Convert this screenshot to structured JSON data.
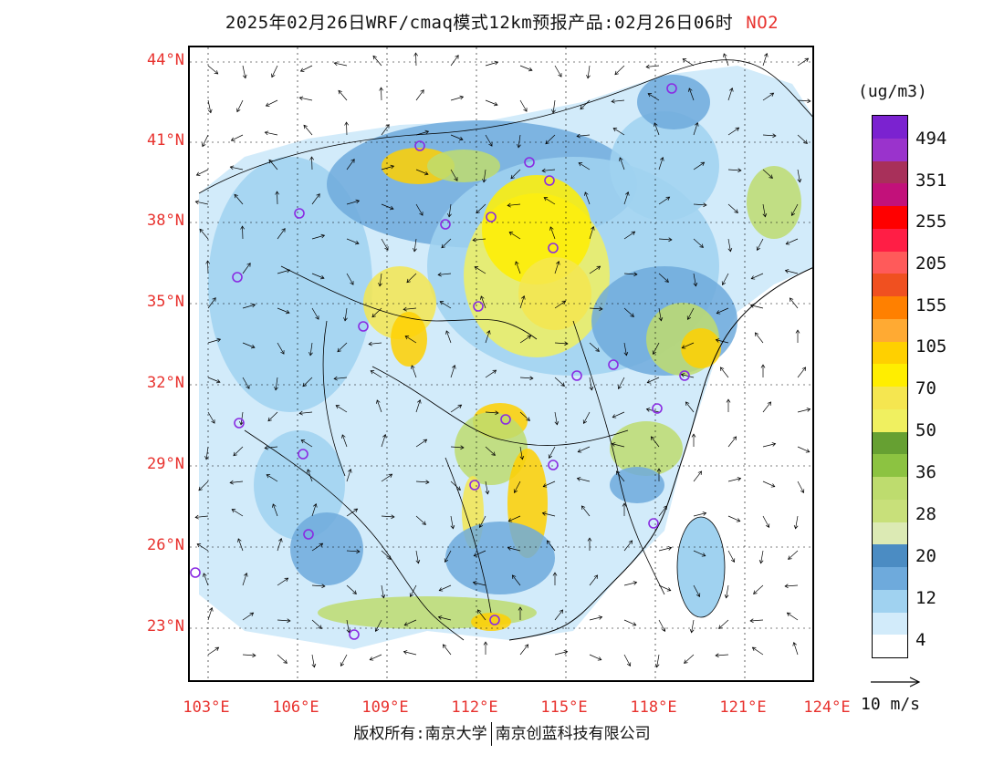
{
  "title": {
    "text": "2025年02月26日WRF/cmaq模式12km预报产品:02月26日06时",
    "species": "NO2"
  },
  "latitude_labels": [
    "44°N",
    "41°N",
    "38°N",
    "35°N",
    "32°N",
    "29°N",
    "26°N",
    "23°N"
  ],
  "longitude_labels": [
    "103°E",
    "106°E",
    "109°E",
    "112°E",
    "115°E",
    "118°E",
    "121°E",
    "124°E"
  ],
  "colorbar": {
    "units": "(ug/m3)",
    "labels": [
      "494",
      "351",
      "255",
      "205",
      "155",
      "105",
      "70",
      "50",
      "36",
      "28",
      "20",
      "12",
      "4"
    ],
    "colors": [
      "#7b22d0",
      "#9a33cc",
      "#a8305a",
      "#c2117a",
      "#ff0000",
      "#ff1e45",
      "#ff5a5a",
      "#f05020",
      "#ff8000",
      "#ffaa33",
      "#ffd000",
      "#ffee00",
      "#f5e650",
      "#f0f060",
      "#66a032",
      "#8cc341",
      "#bedc6e",
      "#c8e07a",
      "#dceab4",
      "#4b8cc3",
      "#6eaadc",
      "#a0d2f0",
      "#d2ebfa",
      "#ffffff"
    ]
  },
  "wind_reference": {
    "label": "10 m/s"
  },
  "copyright": {
    "left": "版权所有:南京大学",
    "right": "南京创蓝科技有限公司"
  },
  "colors": {
    "label_red": "#e8322e",
    "city_marker": "#8a2be2",
    "water": "#4b8cc3"
  }
}
